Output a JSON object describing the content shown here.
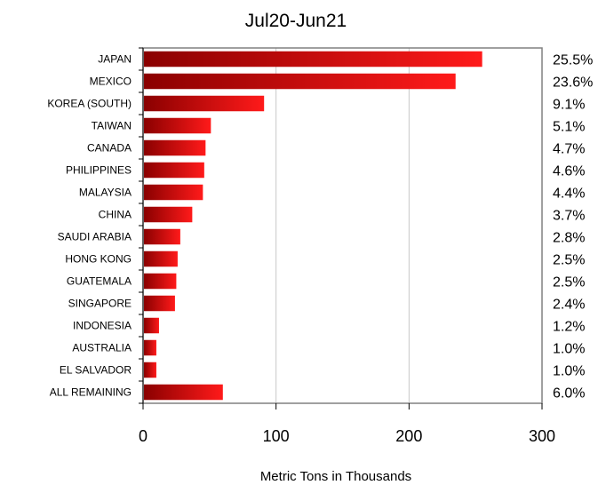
{
  "chart_data": {
    "type": "bar",
    "orientation": "horizontal",
    "title": "Jul20-Jun21",
    "xlabel": "Metric Tons in Thousands",
    "ylabel": "",
    "xlim": [
      0,
      300
    ],
    "xticks": [
      0,
      100,
      200,
      300
    ],
    "grid": "vertical",
    "bar_color": "#e00000",
    "categories": [
      "JAPAN",
      "MEXICO",
      "KOREA (SOUTH)",
      "TAIWAN",
      "CANADA",
      "PHILIPPINES",
      "MALAYSIA",
      "CHINA",
      "SAUDI ARABIA",
      "HONG KONG",
      "GUATEMALA",
      "SINGAPORE",
      "INDONESIA",
      "AUSTRALIA",
      "EL SALVADOR",
      "ALL REMAINING"
    ],
    "values": [
      255,
      235,
      91,
      51,
      47,
      46,
      45,
      37,
      28,
      26,
      25,
      24,
      12,
      10,
      10,
      60
    ],
    "percent_labels": [
      "25.5%",
      "23.6%",
      "9.1%",
      "5.1%",
      "4.7%",
      "4.6%",
      "4.4%",
      "3.7%",
      "2.8%",
      "2.5%",
      "2.5%",
      "2.4%",
      "1.2%",
      "1.0%",
      "1.0%",
      "6.0%"
    ]
  }
}
